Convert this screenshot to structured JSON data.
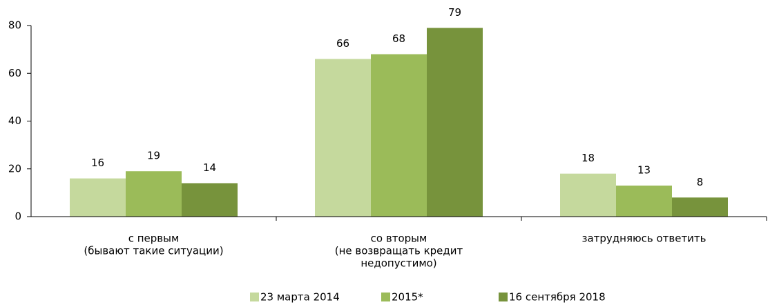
{
  "chart_data": {
    "type": "bar",
    "categories": [
      [
        "с первым",
        "(бывают такие ситуации)"
      ],
      [
        "со вторым",
        "(не возвращать кредит",
        "недопустимо)"
      ],
      [
        "затрудняюсь ответить"
      ]
    ],
    "series": [
      {
        "name": "23 марта 2014",
        "color": "#c5d99d",
        "values": [
          16,
          66,
          18
        ]
      },
      {
        "name": "2015*",
        "color": "#9bbb59",
        "values": [
          19,
          68,
          13
        ]
      },
      {
        "name": "16 сентября 2018",
        "color": "#77933c",
        "values": [
          14,
          79,
          8
        ]
      }
    ],
    "ylim": [
      0,
      80
    ],
    "yticks": [
      0,
      20,
      40,
      60,
      80
    ],
    "legend": "bottom"
  }
}
